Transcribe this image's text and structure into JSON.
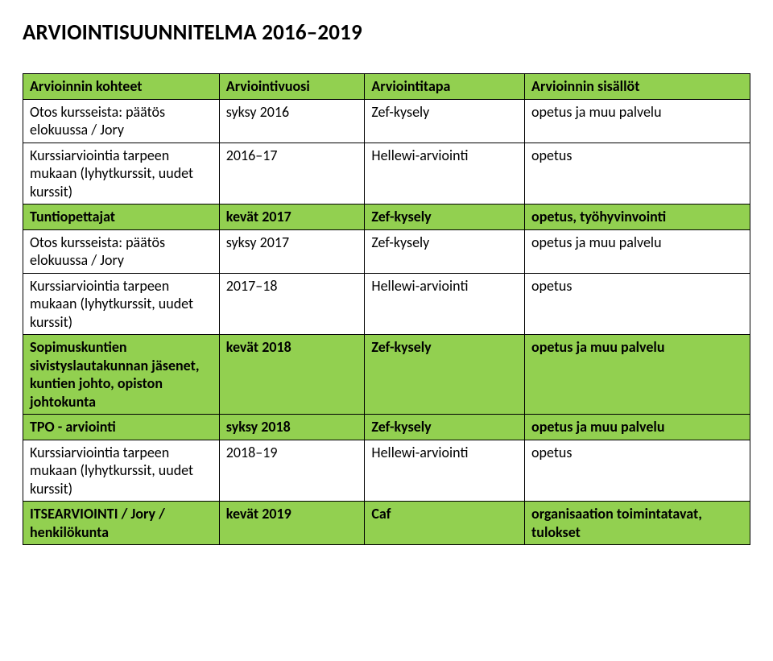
{
  "title": "ARVIOINTISUUNNITELMA 2016–2019",
  "table": {
    "colors": {
      "header_bg": "#92d050",
      "border": "#000000",
      "text": "#000000",
      "page_bg": "#ffffff"
    },
    "font_size": 18,
    "columns": [
      {
        "label": "Arvioinnin kohteet"
      },
      {
        "label": "Arviointivuosi"
      },
      {
        "label": "Arviointitapa"
      },
      {
        "label": "Arvioinnin sisällöt"
      }
    ],
    "rows": [
      {
        "green": true,
        "bold": true,
        "cells": [
          "Arvioinnin kohteet",
          "Arviointivuosi",
          "Arviointitapa",
          "Arvioinnin sisällöt"
        ]
      },
      {
        "green": false,
        "bold": false,
        "cells": [
          "Otos kursseista: päätös elokuussa / Jory",
          "syksy 2016",
          "Zef-kysely",
          "opetus ja muu palvelu"
        ]
      },
      {
        "green": false,
        "bold": false,
        "cells": [
          "Kurssiarviointia tarpeen mukaan (lyhytkurssit, uudet kurssit)",
          "2016–17",
          "Hellewi-arviointi",
          "opetus"
        ]
      },
      {
        "green": true,
        "bold": true,
        "cells": [
          "Tuntiopettajat",
          "kevät 2017",
          "Zef-kysely",
          "opetus, työhyvinvointi"
        ]
      },
      {
        "green": false,
        "bold": false,
        "cells": [
          "Otos kursseista: päätös elokuussa / Jory",
          "syksy 2017",
          "Zef-kysely",
          "opetus ja muu palvelu"
        ]
      },
      {
        "green": false,
        "bold": false,
        "cells": [
          "Kurssiarviointia tarpeen mukaan (lyhytkurssit, uudet kurssit)",
          "2017–18",
          "Hellewi-arviointi",
          "opetus"
        ]
      },
      {
        "green": true,
        "bold": true,
        "cells": [
          "Sopimuskuntien sivistyslautakunnan jäsenet, kuntien johto, opiston johtokunta",
          "kevät 2018",
          "Zef-kysely",
          "opetus ja muu palvelu"
        ]
      },
      {
        "green": true,
        "bold": true,
        "cells": [
          "TPO - arviointi",
          "syksy 2018",
          "Zef-kysely",
          "opetus ja muu palvelu"
        ]
      },
      {
        "green": false,
        "bold": false,
        "cells": [
          "Kurssiarviointia tarpeen mukaan (lyhytkurssit, uudet kurssit)",
          "2018–19",
          "Hellewi-arviointi",
          "opetus"
        ]
      },
      {
        "green": true,
        "bold": true,
        "cells": [
          "ITSEARVIOINTI / Jory / henkilökunta",
          "kevät 2019",
          "Caf",
          "organisaation toimintatavat, tulokset"
        ]
      }
    ]
  }
}
